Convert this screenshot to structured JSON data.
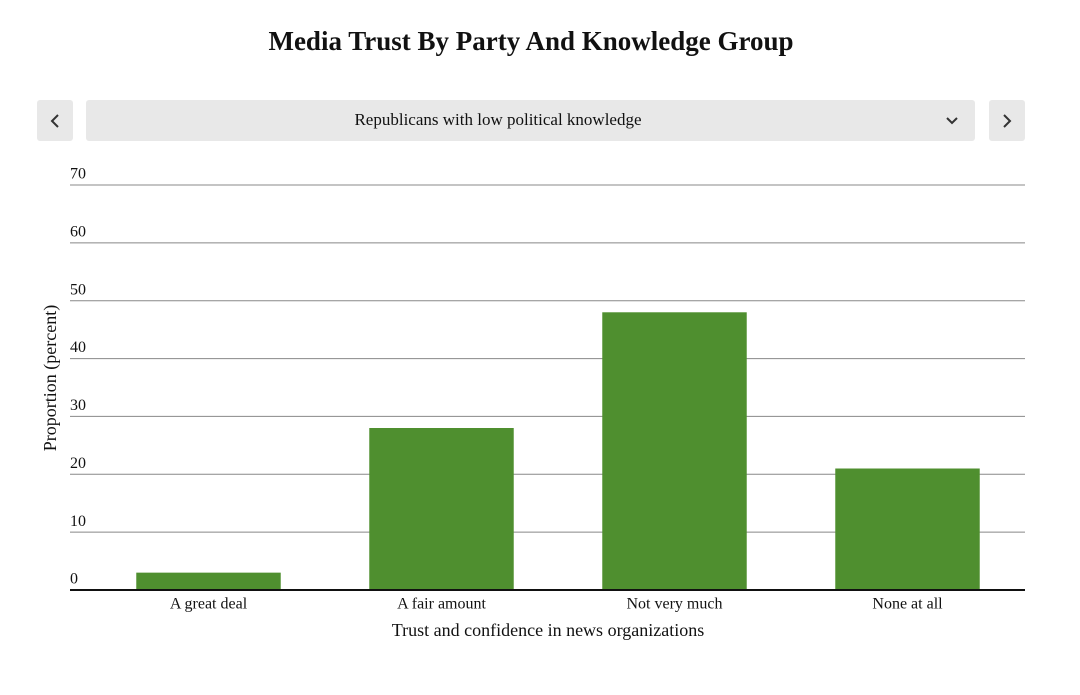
{
  "chart_data": {
    "type": "bar",
    "title": "Media Trust By Party And Knowledge Group",
    "x_label": "Trust and confidence in news organizations",
    "y_label": "Proportion (percent)",
    "categories": [
      "A great deal",
      "A fair amount",
      "Not very much",
      "None at all"
    ],
    "values": [
      3,
      28,
      48,
      21
    ],
    "color": "#4f8f2f",
    "ylim": [
      0,
      70
    ],
    "yticks": [
      0,
      10,
      20,
      30,
      40,
      50,
      60,
      70
    ],
    "grid": true
  },
  "controls": {
    "selected": "Republicans with low political knowledge"
  }
}
